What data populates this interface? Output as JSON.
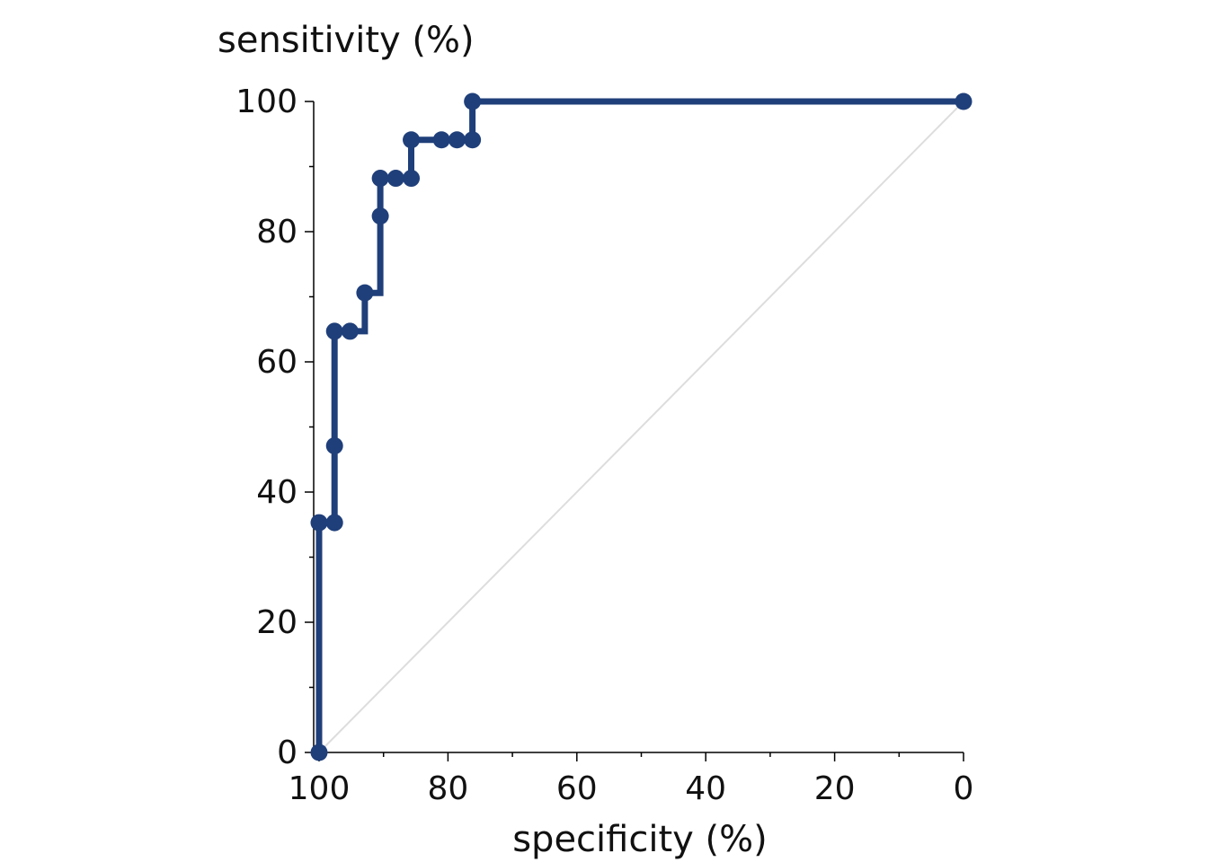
{
  "chart_data": {
    "type": "line",
    "title": "",
    "xlabel": "specificity (%)",
    "ylabel": "sensitivity (%)",
    "x_reversed": true,
    "xlim": [
      100,
      0
    ],
    "ylim": [
      0,
      100
    ],
    "x_ticks": [
      100,
      80,
      60,
      40,
      20,
      0
    ],
    "x_minor_ticks": [
      90,
      70,
      50,
      30,
      10
    ],
    "y_ticks": [
      0,
      20,
      40,
      60,
      80,
      100
    ],
    "y_minor_ticks": [
      10,
      30,
      50,
      70,
      90
    ],
    "grid": false,
    "line_color": "#1f3f7a",
    "reference_line_color": "#dddddd",
    "series": [
      {
        "points": [
          [
            100,
            0
          ],
          [
            100,
            35.3
          ],
          [
            97.6,
            35.3
          ],
          [
            97.6,
            47.1
          ],
          [
            97.6,
            64.7
          ],
          [
            95.2,
            64.7
          ],
          [
            92.9,
            64.7
          ],
          [
            92.9,
            70.6
          ],
          [
            90.5,
            70.6
          ],
          [
            90.5,
            82.4
          ],
          [
            90.5,
            88.2
          ],
          [
            88.1,
            88.2
          ],
          [
            85.7,
            88.2
          ],
          [
            85.7,
            94.1
          ],
          [
            81.0,
            94.1
          ],
          [
            78.6,
            94.1
          ],
          [
            76.2,
            94.1
          ],
          [
            76.2,
            100
          ],
          [
            0,
            100
          ]
        ],
        "markers": [
          [
            100,
            0
          ],
          [
            100,
            35.3
          ],
          [
            97.6,
            35.3
          ],
          [
            97.6,
            47.1
          ],
          [
            97.6,
            64.7
          ],
          [
            95.2,
            64.7
          ],
          [
            92.9,
            70.6
          ],
          [
            90.5,
            82.4
          ],
          [
            90.5,
            88.2
          ],
          [
            88.1,
            88.2
          ],
          [
            85.7,
            88.2
          ],
          [
            85.7,
            94.1
          ],
          [
            81.0,
            94.1
          ],
          [
            78.6,
            94.1
          ],
          [
            76.2,
            94.1
          ],
          [
            76.2,
            100
          ],
          [
            0,
            100
          ]
        ]
      }
    ]
  }
}
